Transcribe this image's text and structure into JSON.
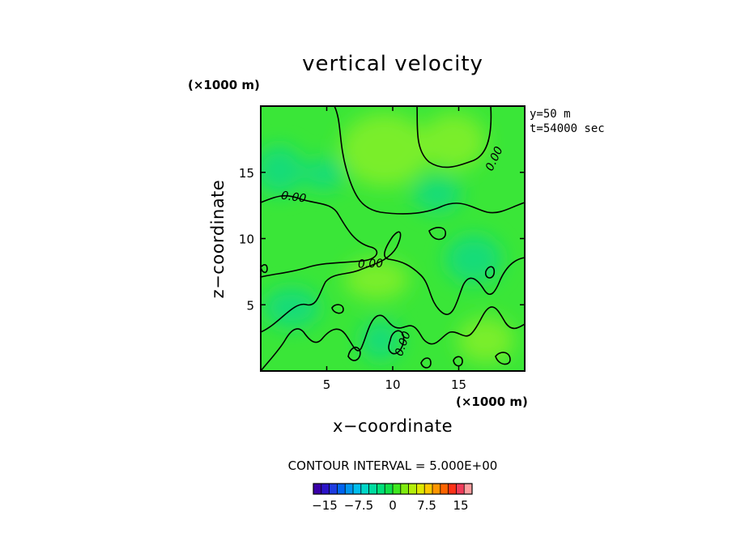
{
  "chart_data": {
    "type": "heatmap",
    "title": "vertical velocity",
    "xlabel": "x−coordinate",
    "ylabel": "z−coordinate",
    "x_unit": "(×1000 m)",
    "y_unit": "(×1000 m)",
    "xlim": [
      0,
      20
    ],
    "ylim": [
      0,
      20
    ],
    "x_ticks": [
      5,
      10,
      15
    ],
    "y_ticks": [
      5,
      10,
      15
    ],
    "info_lines": [
      "y=50 m",
      "t=54000 sec"
    ],
    "contour_interval_label": "CONTOUR INTERVAL = 5.000E+00",
    "contour_levels": [
      0
    ],
    "contour_label": "0.00",
    "field_value_range": [
      -2.5,
      2.5
    ],
    "colorbar": {
      "vmin": -17.5,
      "vmax": 17.5,
      "tick_values": [
        -15,
        -7.5,
        0,
        7.5,
        15
      ],
      "tick_labels": [
        "−15",
        "−7.5",
        "0",
        "7.5",
        "15"
      ],
      "colors": [
        "#3a00a8",
        "#2c14c8",
        "#1e3ce0",
        "#0064f0",
        "#0096f0",
        "#00beee",
        "#00d7c8",
        "#00dca0",
        "#00e07a",
        "#10e04a",
        "#40e820",
        "#80ec10",
        "#b4ee0a",
        "#e0e800",
        "#ffc800",
        "#ff9600",
        "#ff6400",
        "#ff3218",
        "#f03c5a",
        "#ff9ea0"
      ]
    },
    "field_colors": {
      "base": "#3ae638",
      "slightly_positive": "#7aee2a",
      "slightly_negative": "#12dc78"
    }
  }
}
